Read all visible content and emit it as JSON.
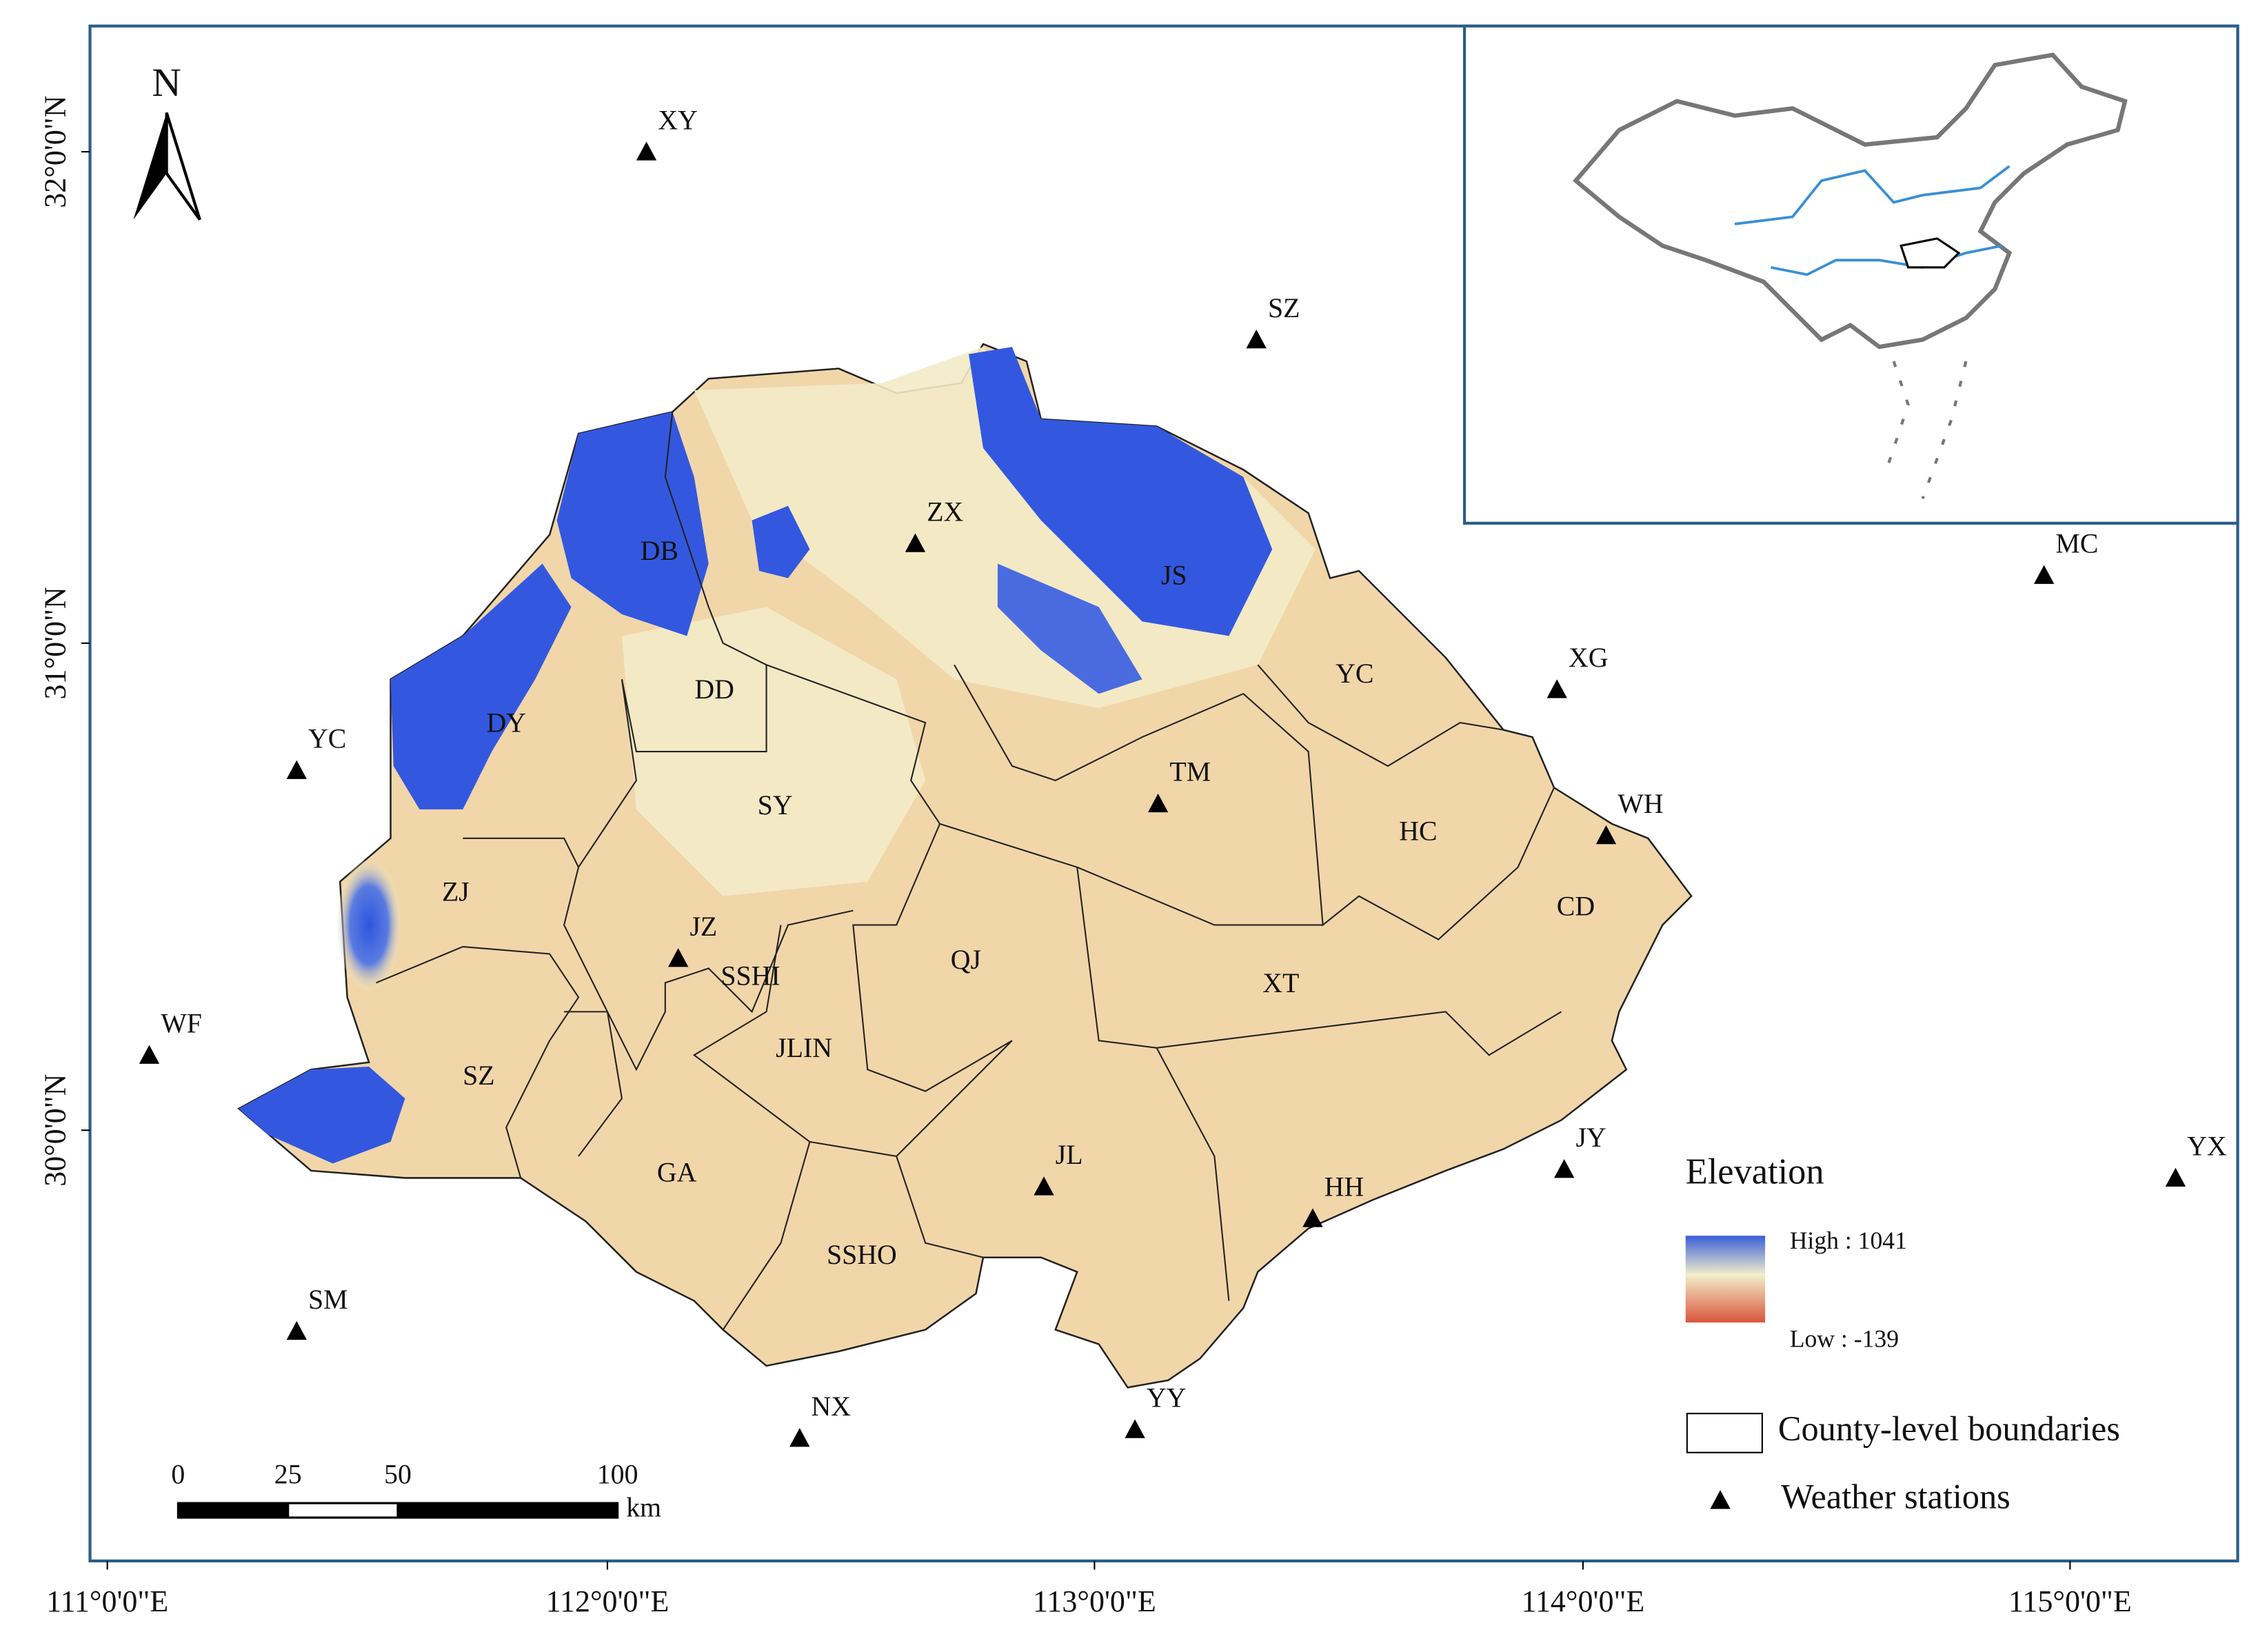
{
  "map": {
    "north_label": "N",
    "lat_labels": [
      "32°0'0\"N",
      "31°0'0\"N",
      "30°0'0\"N"
    ],
    "lon_labels": [
      "111°0'0\"E",
      "112°0'0\"E",
      "113°0'0\"E",
      "114°0'0\"E",
      "115°0'0\"E"
    ],
    "stations": [
      "XY",
      "SZ",
      "MC",
      "XG",
      "WH",
      "YC",
      "WF",
      "JY",
      "YX",
      "SM",
      "NX",
      "YY",
      "ZX",
      "TM",
      "JZ",
      "JL",
      "HH"
    ],
    "counties": [
      "DB",
      "JS",
      "DD",
      "DY",
      "YC",
      "SY",
      "HC",
      "CD",
      "ZJ",
      "SSHI",
      "QJ",
      "XT",
      "SZ",
      "JLIN",
      "GA",
      "SSHO"
    ],
    "legend": {
      "title": "Elevation",
      "high": "High : 1041",
      "low": "Low : -139",
      "boundaries": "County-level boundaries",
      "stations": "Weather stations"
    },
    "scale": {
      "ticks": [
        0,
        25,
        50,
        100
      ],
      "unit": "km"
    }
  }
}
